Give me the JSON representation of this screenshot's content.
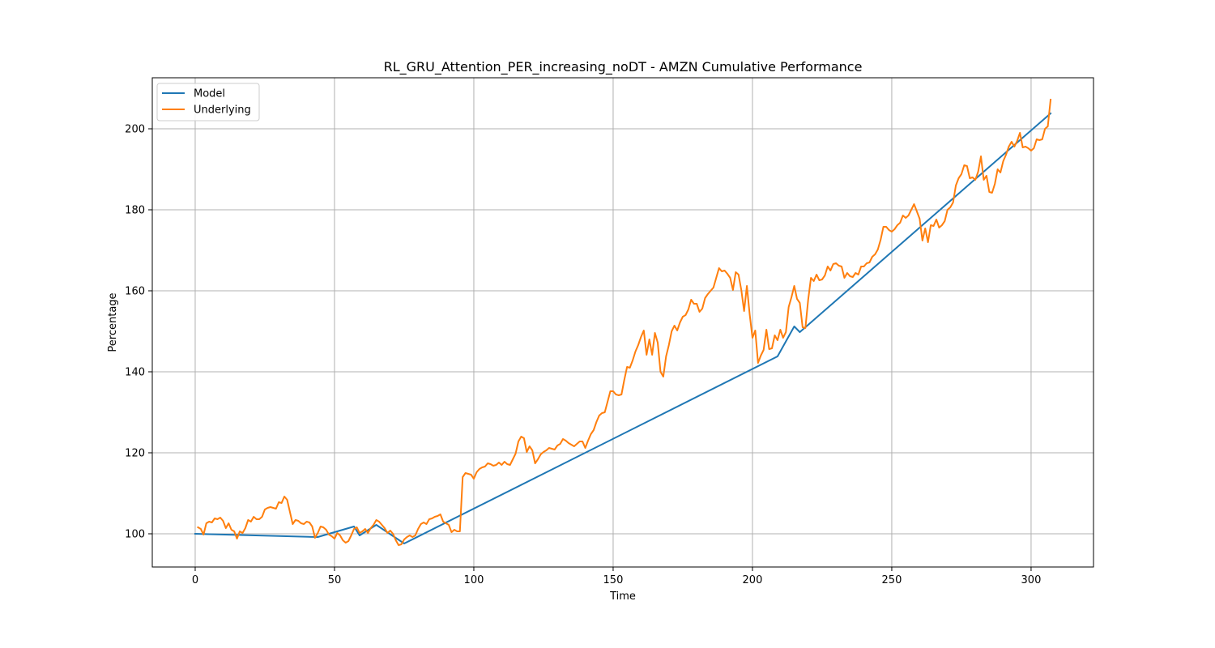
{
  "chart_data": {
    "type": "line",
    "title": "RL_GRU_Attention_PER_increasing_noDT - AMZN Cumulative Performance",
    "xlabel": "Time",
    "ylabel": "Percentage",
    "xlim": [
      -15.4,
      322.4
    ],
    "ylim": [
      91.8,
      212.6
    ],
    "xticks": [
      0,
      50,
      100,
      150,
      200,
      250,
      300
    ],
    "yticks": [
      100,
      120,
      140,
      160,
      180,
      200
    ],
    "grid": true,
    "legend_position": "upper-left",
    "series": [
      {
        "name": "Model",
        "color": "#1f77b4",
        "x": [
          0,
          44,
          57,
          59,
          65,
          75,
          209,
          215,
          217,
          307
        ],
        "y": [
          100,
          99.2,
          101.8,
          99.6,
          102.2,
          97.6,
          143.8,
          151.2,
          149.8,
          203.8
        ]
      },
      {
        "name": "Underlying",
        "color": "#ff7f0e",
        "x": [
          1,
          2,
          3,
          4,
          5,
          6,
          7,
          8,
          9,
          10,
          11,
          12,
          13,
          14,
          15,
          16,
          17,
          18,
          19,
          20,
          21,
          22,
          23,
          24,
          25,
          26,
          27,
          28,
          29,
          30,
          31,
          32,
          33,
          34,
          35,
          36,
          37,
          38,
          39,
          40,
          41,
          42,
          43,
          44,
          45,
          46,
          47,
          48,
          49,
          50,
          51,
          52,
          53,
          54,
          55,
          56,
          57,
          58,
          59,
          60,
          61,
          62,
          63,
          64,
          65,
          66,
          67,
          68,
          69,
          70,
          71,
          72,
          73,
          74,
          75,
          76,
          77,
          78,
          79,
          80,
          81,
          82,
          83,
          84,
          85,
          86,
          87,
          88,
          89,
          90,
          91,
          92,
          93,
          94,
          95,
          96,
          97,
          98,
          99,
          100,
          101,
          102,
          103,
          104,
          105,
          106,
          107,
          108,
          109,
          110,
          111,
          112,
          113,
          114,
          115,
          116,
          117,
          118,
          119,
          120,
          121,
          122,
          123,
          124,
          125,
          126,
          127,
          128,
          129,
          130,
          131,
          132,
          133,
          134,
          135,
          136,
          137,
          138,
          139,
          140,
          141,
          142,
          143,
          144,
          145,
          146,
          147,
          148,
          149,
          150,
          151,
          152,
          153,
          154,
          155,
          156,
          157,
          158,
          159,
          160,
          161,
          162,
          163,
          164,
          165,
          166,
          167,
          168,
          169,
          170,
          171,
          172,
          173,
          174,
          175,
          176,
          177,
          178,
          179,
          180,
          181,
          182,
          183,
          184,
          185,
          186,
          187,
          188,
          189,
          190,
          191,
          192,
          193,
          194,
          195,
          196,
          197,
          198,
          199,
          200,
          201,
          202,
          203,
          204,
          205,
          206,
          207,
          208,
          209,
          210,
          211,
          212,
          213,
          214,
          215,
          216,
          217,
          218,
          219,
          220,
          221,
          222,
          223,
          224,
          225,
          226,
          227,
          228,
          229,
          230,
          231,
          232,
          233,
          234,
          235,
          236,
          237,
          238,
          239,
          240,
          241,
          242,
          243,
          244,
          245,
          246,
          247,
          248,
          249,
          250,
          251,
          252,
          253,
          254,
          255,
          256,
          257,
          258,
          259,
          260,
          261,
          262,
          263,
          264,
          265,
          266,
          267,
          268,
          269,
          270,
          271,
          272,
          273,
          274,
          275,
          276,
          277,
          278,
          279,
          280,
          281,
          282,
          283,
          284,
          285,
          286,
          287,
          288,
          289,
          290,
          291,
          292,
          293,
          294,
          295,
          296,
          297,
          298,
          299,
          300,
          301,
          302,
          303,
          304,
          305,
          306,
          307
        ],
        "y": [
          101.6,
          101.2,
          99.8,
          102.6,
          103.0,
          102.8,
          103.8,
          103.6,
          104.0,
          103.2,
          101.4,
          102.6,
          101.0,
          100.6,
          98.8,
          100.6,
          100.2,
          101.4,
          103.4,
          103.0,
          104.2,
          103.6,
          103.6,
          104.2,
          106.0,
          106.4,
          106.6,
          106.4,
          106.2,
          107.8,
          107.6,
          109.2,
          108.4,
          105.4,
          102.4,
          103.4,
          103.2,
          102.6,
          102.4,
          103.0,
          102.8,
          101.8,
          99.0,
          100.2,
          101.8,
          101.6,
          101.0,
          99.8,
          99.4,
          98.8,
          100.2,
          99.6,
          98.4,
          97.8,
          98.2,
          99.6,
          101.2,
          101.6,
          100.2,
          100.6,
          101.2,
          100.2,
          101.4,
          102.2,
          103.4,
          103.0,
          102.2,
          101.4,
          100.2,
          100.8,
          100.0,
          98.4,
          97.2,
          97.4,
          98.6,
          99.2,
          99.6,
          99.2,
          99.6,
          101.2,
          102.4,
          102.8,
          102.4,
          103.6,
          103.8,
          104.2,
          104.4,
          104.8,
          103.0,
          102.6,
          102.2,
          100.4,
          101.0,
          100.6,
          100.6,
          114.0,
          115.0,
          114.8,
          114.6,
          113.6,
          115.2,
          116.0,
          116.4,
          116.6,
          117.4,
          117.2,
          116.8,
          117.0,
          117.6,
          117.0,
          117.8,
          117.2,
          117.0,
          118.4,
          119.8,
          122.8,
          124.0,
          123.6,
          120.2,
          121.6,
          120.6,
          117.4,
          118.4,
          119.6,
          120.2,
          120.6,
          121.2,
          121.0,
          120.8,
          121.8,
          122.2,
          123.4,
          123.0,
          122.4,
          122.0,
          121.6,
          122.2,
          122.8,
          122.8,
          121.2,
          123.0,
          124.6,
          125.6,
          127.6,
          129.2,
          129.8,
          130.0,
          132.6,
          135.2,
          135.2,
          134.4,
          134.2,
          134.4,
          138.0,
          141.2,
          141.0,
          142.8,
          145.0,
          146.6,
          148.6,
          150.2,
          144.2,
          148.0,
          144.2,
          149.6,
          147.2,
          140.0,
          138.8,
          143.8,
          146.6,
          150.0,
          151.4,
          150.2,
          152.2,
          153.6,
          154.0,
          155.4,
          157.8,
          156.8,
          156.8,
          154.8,
          155.6,
          158.2,
          159.2,
          160.0,
          160.8,
          163.2,
          165.6,
          164.8,
          165.0,
          164.2,
          163.2,
          160.2,
          164.6,
          164.0,
          160.2,
          155.0,
          161.2,
          154.2,
          148.4,
          150.2,
          142.2,
          144.0,
          145.4,
          150.4,
          145.6,
          145.8,
          149.0,
          147.8,
          150.4,
          148.4,
          149.8,
          156.0,
          158.4,
          161.2,
          158.0,
          157.0,
          151.0,
          150.8,
          157.8,
          163.2,
          162.4,
          164.0,
          162.6,
          162.8,
          163.8,
          166.0,
          165.0,
          166.6,
          166.8,
          166.2,
          166.0,
          163.2,
          164.4,
          163.6,
          163.4,
          164.4,
          164.0,
          166.0,
          166.0,
          166.8,
          167.0,
          168.4,
          169.0,
          170.2,
          172.6,
          175.8,
          175.8,
          175.0,
          174.6,
          175.2,
          176.2,
          176.8,
          178.6,
          178.0,
          178.6,
          180.0,
          181.4,
          179.6,
          177.8,
          172.4,
          175.4,
          172.0,
          176.2,
          176.0,
          177.6,
          175.6,
          176.2,
          177.2,
          180.0,
          180.6,
          181.8,
          186.0,
          187.8,
          188.8,
          191.0,
          190.8,
          187.8,
          188.0,
          187.4,
          189.4,
          193.2,
          187.4,
          188.4,
          184.4,
          184.2,
          186.4,
          190.0,
          189.2,
          192.0,
          193.6,
          195.6,
          196.8,
          195.6,
          197.0,
          199.0,
          195.4,
          195.6,
          195.2,
          194.6,
          195.2,
          197.4,
          197.2,
          197.4,
          200.0,
          200.6,
          207.2
        ]
      }
    ]
  }
}
